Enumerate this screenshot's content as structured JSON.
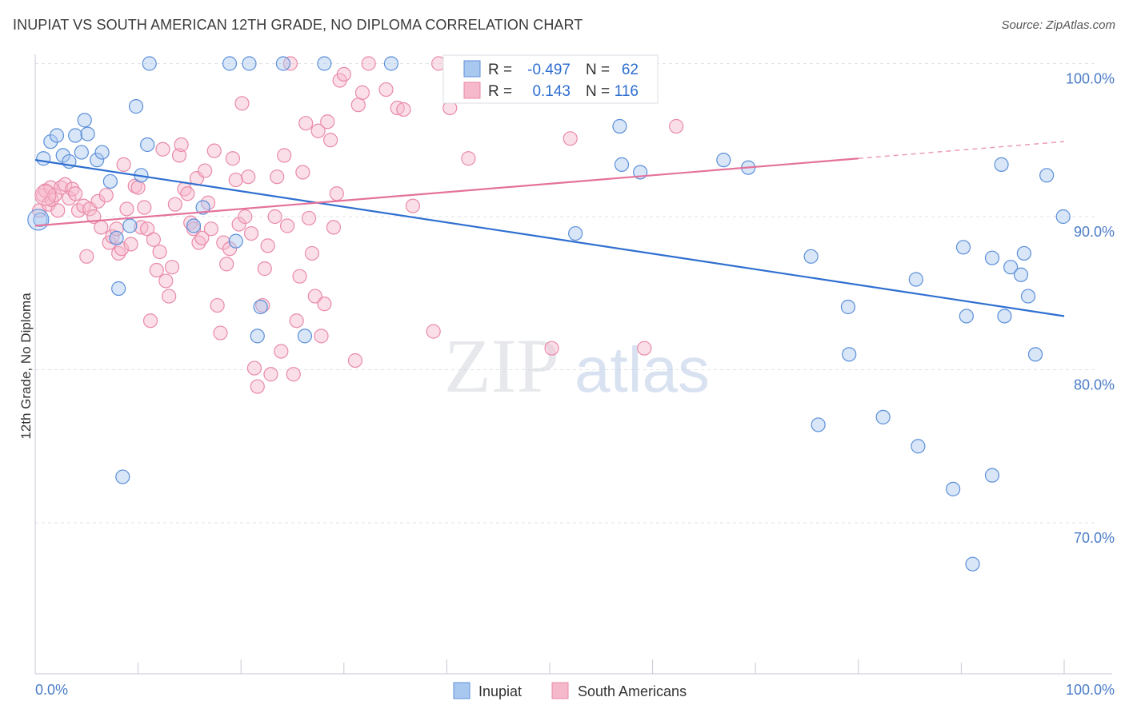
{
  "title": "INUPIAT VS SOUTH AMERICAN 12TH GRADE, NO DIPLOMA CORRELATION CHART",
  "source": "Source: ZipAtlas.com",
  "watermark": {
    "zip": "ZIP",
    "atlas": "atlas"
  },
  "colors": {
    "inupiat_fill": "#a9c8f0",
    "inupiat_stroke": "#5b8fd9",
    "inupiat_line": "#2f6fd0",
    "south_fill": "#f6b8cb",
    "south_stroke": "#e98aa8",
    "south_line": "#e4729a",
    "axis_text": "#4a7cc7",
    "grid": "#dfe3ea"
  },
  "legend": {
    "rows": [
      {
        "r_label": "R =",
        "r_value": "-0.497",
        "n_label": "N =",
        "n_value": "62"
      },
      {
        "r_label": "R =",
        "r_value": "0.143",
        "n_label": "N =",
        "n_value": "116"
      }
    ]
  },
  "chart_data": {
    "type": "scatter",
    "xlabel": "",
    "ylabel": "12th Grade, No Diploma",
    "xlim": [
      0,
      100
    ],
    "ylim": [
      60,
      101.5
    ],
    "x_tick_labels": [
      "0.0%",
      "100.0%"
    ],
    "y_ticks": [
      {
        "value": 100,
        "label": "100.0%"
      },
      {
        "value": 90,
        "label": "90.0%"
      },
      {
        "value": 80,
        "label": "80.0%"
      },
      {
        "value": 70,
        "label": "70.0%"
      }
    ],
    "grid": true,
    "legend_position": "bottom",
    "series": [
      {
        "name": "Inupiat",
        "trend": {
          "x0": 0,
          "y0": 93.7,
          "x1": 100,
          "y1": 83.5,
          "dashed_from": null
        },
        "points": [
          [
            0.5,
            89.8
          ],
          [
            0.8,
            93.8
          ],
          [
            1.5,
            94.9
          ],
          [
            2.1,
            95.3
          ],
          [
            2.7,
            94.0
          ],
          [
            3.3,
            93.6
          ],
          [
            3.9,
            95.3
          ],
          [
            4.5,
            94.2
          ],
          [
            4.8,
            96.3
          ],
          [
            5.1,
            95.4
          ],
          [
            6.0,
            93.7
          ],
          [
            6.5,
            94.2
          ],
          [
            7.3,
            92.3
          ],
          [
            7.9,
            88.6
          ],
          [
            8.1,
            85.3
          ],
          [
            8.5,
            73.0
          ],
          [
            9.2,
            89.4
          ],
          [
            9.8,
            97.2
          ],
          [
            10.3,
            92.7
          ],
          [
            10.9,
            94.7
          ],
          [
            11.1,
            100.0
          ],
          [
            15.4,
            89.4
          ],
          [
            16.3,
            90.6
          ],
          [
            18.9,
            100.0
          ],
          [
            19.5,
            88.4
          ],
          [
            20.8,
            100.0
          ],
          [
            21.6,
            82.2
          ],
          [
            21.9,
            84.1
          ],
          [
            24.1,
            100.0
          ],
          [
            26.2,
            82.2
          ],
          [
            28.1,
            100.0
          ],
          [
            34.6,
            100.0
          ],
          [
            52.5,
            88.9
          ],
          [
            56.8,
            95.9
          ],
          [
            57.0,
            93.4
          ],
          [
            58.8,
            92.9
          ],
          [
            66.9,
            93.7
          ],
          [
            69.3,
            93.2
          ],
          [
            75.4,
            87.4
          ],
          [
            79.0,
            84.1
          ],
          [
            79.1,
            81.0
          ],
          [
            76.1,
            76.4
          ],
          [
            82.4,
            76.9
          ],
          [
            85.6,
            85.9
          ],
          [
            85.8,
            75.0
          ],
          [
            89.2,
            72.2
          ],
          [
            91.1,
            67.3
          ],
          [
            90.2,
            88.0
          ],
          [
            90.5,
            83.5
          ],
          [
            93.0,
            87.3
          ],
          [
            93.9,
            93.4
          ],
          [
            93.0,
            73.1
          ],
          [
            94.2,
            83.5
          ],
          [
            94.8,
            86.7
          ],
          [
            95.8,
            86.2
          ],
          [
            96.1,
            87.6
          ],
          [
            96.5,
            84.8
          ],
          [
            97.2,
            81.0
          ],
          [
            98.3,
            92.7
          ],
          [
            99.9,
            90.0
          ]
        ]
      },
      {
        "name": "South Americans",
        "trend": {
          "x0": 0,
          "y0": 89.4,
          "x1": 100,
          "y1": 94.9,
          "dashed_from": 80
        },
        "points": [
          [
            0.4,
            90.4
          ],
          [
            0.8,
            91.4
          ],
          [
            1.0,
            91.7
          ],
          [
            1.3,
            90.8
          ],
          [
            1.5,
            91.9
          ],
          [
            1.6,
            91.1
          ],
          [
            1.9,
            91.4
          ],
          [
            2.2,
            90.4
          ],
          [
            2.5,
            91.9
          ],
          [
            2.9,
            92.1
          ],
          [
            3.3,
            91.2
          ],
          [
            3.6,
            91.8
          ],
          [
            3.9,
            91.5
          ],
          [
            4.2,
            90.4
          ],
          [
            4.7,
            90.7
          ],
          [
            5.0,
            87.4
          ],
          [
            5.3,
            90.5
          ],
          [
            5.7,
            90.0
          ],
          [
            6.1,
            91.0
          ],
          [
            6.4,
            89.3
          ],
          [
            6.9,
            91.4
          ],
          [
            7.2,
            88.3
          ],
          [
            7.5,
            88.7
          ],
          [
            7.9,
            89.2
          ],
          [
            8.1,
            87.6
          ],
          [
            8.4,
            87.9
          ],
          [
            8.6,
            93.4
          ],
          [
            8.9,
            90.5
          ],
          [
            9.3,
            88.2
          ],
          [
            9.7,
            92.0
          ],
          [
            10.0,
            91.9
          ],
          [
            10.3,
            89.3
          ],
          [
            10.6,
            90.6
          ],
          [
            10.9,
            89.2
          ],
          [
            11.2,
            83.2
          ],
          [
            11.5,
            88.5
          ],
          [
            11.8,
            86.5
          ],
          [
            12.1,
            87.7
          ],
          [
            12.4,
            94.4
          ],
          [
            12.7,
            85.8
          ],
          [
            13.0,
            84.8
          ],
          [
            13.3,
            86.7
          ],
          [
            13.6,
            90.8
          ],
          [
            14.0,
            94.0
          ],
          [
            14.2,
            94.7
          ],
          [
            14.5,
            91.8
          ],
          [
            14.8,
            91.5
          ],
          [
            15.1,
            89.6
          ],
          [
            15.4,
            89.2
          ],
          [
            15.7,
            92.5
          ],
          [
            15.9,
            88.3
          ],
          [
            16.2,
            88.6
          ],
          [
            16.5,
            93.0
          ],
          [
            16.8,
            90.9
          ],
          [
            17.1,
            89.2
          ],
          [
            17.4,
            94.3
          ],
          [
            17.7,
            84.2
          ],
          [
            18.0,
            82.4
          ],
          [
            18.3,
            88.3
          ],
          [
            18.6,
            86.9
          ],
          [
            18.9,
            87.9
          ],
          [
            19.2,
            93.8
          ],
          [
            19.5,
            92.4
          ],
          [
            19.8,
            89.5
          ],
          [
            20.1,
            97.4
          ],
          [
            20.4,
            90.0
          ],
          [
            20.7,
            92.6
          ],
          [
            21.0,
            88.9
          ],
          [
            21.3,
            80.1
          ],
          [
            21.6,
            78.9
          ],
          [
            22.1,
            84.2
          ],
          [
            22.3,
            86.6
          ],
          [
            22.6,
            88.1
          ],
          [
            22.9,
            79.7
          ],
          [
            23.3,
            90.0
          ],
          [
            23.5,
            92.6
          ],
          [
            23.9,
            81.2
          ],
          [
            24.2,
            94.0
          ],
          [
            24.5,
            89.4
          ],
          [
            24.8,
            100.0
          ],
          [
            25.1,
            79.7
          ],
          [
            25.4,
            83.2
          ],
          [
            25.7,
            86.1
          ],
          [
            26.0,
            92.9
          ],
          [
            26.3,
            96.1
          ],
          [
            26.6,
            89.9
          ],
          [
            26.9,
            87.6
          ],
          [
            27.2,
            84.8
          ],
          [
            27.5,
            95.6
          ],
          [
            27.8,
            82.2
          ],
          [
            28.1,
            84.3
          ],
          [
            28.4,
            96.2
          ],
          [
            28.7,
            95.0
          ],
          [
            29.0,
            89.3
          ],
          [
            29.3,
            91.5
          ],
          [
            29.6,
            98.9
          ],
          [
            30.0,
            99.3
          ],
          [
            31.1,
            80.6
          ],
          [
            31.4,
            97.3
          ],
          [
            31.8,
            98.1
          ],
          [
            32.4,
            100.0
          ],
          [
            34.1,
            98.3
          ],
          [
            35.2,
            97.1
          ],
          [
            35.8,
            97.0
          ],
          [
            36.7,
            90.7
          ],
          [
            38.7,
            82.5
          ],
          [
            39.2,
            100.0
          ],
          [
            40.3,
            97.1
          ],
          [
            40.7,
            98.6
          ],
          [
            42.1,
            93.8
          ],
          [
            50.2,
            81.4
          ],
          [
            52.0,
            95.1
          ],
          [
            59.2,
            81.4
          ],
          [
            62.3,
            95.9
          ]
        ]
      }
    ]
  }
}
